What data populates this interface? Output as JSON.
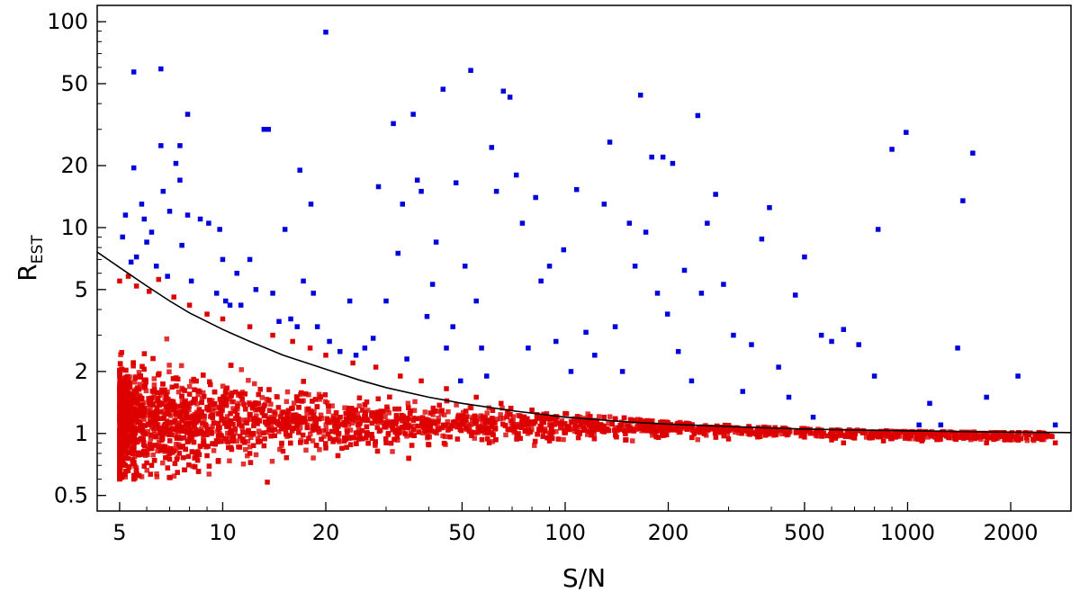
{
  "chart_data": {
    "type": "scatter",
    "xlabel": "S/N",
    "ylabel": "R",
    "ylabel_subscript": "EST",
    "xscale": "log",
    "yscale": "log",
    "xlim": [
      4.3,
      3000
    ],
    "ylim": [
      0.42,
      120
    ],
    "x_ticks": [
      5,
      10,
      20,
      50,
      100,
      200,
      500,
      1000,
      2000
    ],
    "x_tick_labels": [
      "5",
      "10",
      "20",
      "50",
      "100",
      "200",
      "500",
      "1000",
      "2000"
    ],
    "y_ticks": [
      0.5,
      1,
      2,
      5,
      10,
      20,
      50,
      100
    ],
    "y_tick_labels": [
      "0.5",
      "1",
      "2",
      "5",
      "10",
      "20",
      "50",
      "100"
    ],
    "grid": false,
    "colors": {
      "below": "#dd0000",
      "above": "#0000dd",
      "curve": "#000000"
    },
    "series": [
      {
        "kind": "points",
        "color": "#0000dd",
        "points": [
          [
            5.1,
            9.0
          ],
          [
            5.2,
            11.5
          ],
          [
            5.4,
            6.8
          ],
          [
            5.5,
            57
          ],
          [
            5.5,
            19.5
          ],
          [
            5.6,
            7.2
          ],
          [
            5.8,
            13
          ],
          [
            5.9,
            11
          ],
          [
            6.0,
            8.5
          ],
          [
            6.2,
            9.5
          ],
          [
            6.4,
            6.5
          ],
          [
            6.6,
            59
          ],
          [
            6.6,
            25
          ],
          [
            6.7,
            15
          ],
          [
            6.9,
            5.8
          ],
          [
            7.0,
            12
          ],
          [
            7.3,
            20.5
          ],
          [
            7.5,
            25
          ],
          [
            7.5,
            17
          ],
          [
            7.6,
            8.2
          ],
          [
            7.9,
            35.5
          ],
          [
            7.9,
            11.5
          ],
          [
            8.1,
            5.5
          ],
          [
            8.6,
            11
          ],
          [
            9.1,
            10.5
          ],
          [
            9.6,
            4.8
          ],
          [
            9.8,
            9.8
          ],
          [
            10.0,
            7.0
          ],
          [
            10.2,
            4.4
          ],
          [
            10.5,
            4.2
          ],
          [
            11.0,
            6.0
          ],
          [
            11.3,
            4.2
          ],
          [
            12.0,
            7.0
          ],
          [
            12.5,
            5.0
          ],
          [
            13.2,
            30
          ],
          [
            13.6,
            30
          ],
          [
            14.0,
            4.8
          ],
          [
            14.6,
            3.5
          ],
          [
            15.2,
            9.8
          ],
          [
            15.8,
            3.6
          ],
          [
            16.5,
            3.3
          ],
          [
            16.8,
            19
          ],
          [
            17.2,
            5.5
          ],
          [
            18.1,
            13
          ],
          [
            18.4,
            4.8
          ],
          [
            18.9,
            3.3
          ],
          [
            20.0,
            89
          ],
          [
            20.5,
            2.8
          ],
          [
            22.0,
            2.5
          ],
          [
            23.5,
            4.4
          ],
          [
            24.5,
            2.4
          ],
          [
            26.0,
            2.6
          ],
          [
            27.5,
            2.9
          ],
          [
            28.5,
            15.8
          ],
          [
            30.0,
            4.4
          ],
          [
            31.5,
            32
          ],
          [
            32.5,
            7.5
          ],
          [
            33.5,
            13
          ],
          [
            34.5,
            2.3
          ],
          [
            36.0,
            35.5
          ],
          [
            37.0,
            17
          ],
          [
            38.0,
            15
          ],
          [
            39.5,
            3.7
          ],
          [
            41.0,
            5.3
          ],
          [
            42.0,
            8.5
          ],
          [
            44.0,
            47
          ],
          [
            45.0,
            2.6
          ],
          [
            47.0,
            3.3
          ],
          [
            48.0,
            16.5
          ],
          [
            49.5,
            1.8
          ],
          [
            51.0,
            6.5
          ],
          [
            53.0,
            58
          ],
          [
            55.0,
            4.4
          ],
          [
            57.0,
            2.6
          ],
          [
            59.0,
            1.9
          ],
          [
            61.0,
            24.5
          ],
          [
            63.0,
            15
          ],
          [
            66.0,
            46
          ],
          [
            69.0,
            43
          ],
          [
            72.0,
            18
          ],
          [
            75.0,
            10.5
          ],
          [
            78.0,
            2.6
          ],
          [
            82.0,
            14
          ],
          [
            85.0,
            5.5
          ],
          [
            90.0,
            6.5
          ],
          [
            94.0,
            2.8
          ],
          [
            99.0,
            7.8
          ],
          [
            104.0,
            2.0
          ],
          [
            108.0,
            15.3
          ],
          [
            115.0,
            3.1
          ],
          [
            122.0,
            2.4
          ],
          [
            130.0,
            13
          ],
          [
            135.0,
            26
          ],
          [
            140.0,
            3.3
          ],
          [
            147.0,
            2.0
          ],
          [
            154.0,
            10.5
          ],
          [
            160.0,
            6.5
          ],
          [
            166.0,
            44
          ],
          [
            172.0,
            9.5
          ],
          [
            179.0,
            22
          ],
          [
            186.0,
            4.8
          ],
          [
            193.0,
            22
          ],
          [
            199.0,
            3.8
          ],
          [
            206.0,
            20.5
          ],
          [
            214.0,
            2.5
          ],
          [
            223.0,
            6.2
          ],
          [
            234.0,
            1.8
          ],
          [
            244.0,
            35
          ],
          [
            250.0,
            4.8
          ],
          [
            260.0,
            10.5
          ],
          [
            275.0,
            14.5
          ],
          [
            290.0,
            5.3
          ],
          [
            310.0,
            3.0
          ],
          [
            330.0,
            1.6
          ],
          [
            350.0,
            2.7
          ],
          [
            375.0,
            8.8
          ],
          [
            395.0,
            12.5
          ],
          [
            420.0,
            2.1
          ],
          [
            450.0,
            1.5
          ],
          [
            470.0,
            4.7
          ],
          [
            500.0,
            7.2
          ],
          [
            530.0,
            1.2
          ],
          [
            560.0,
            3.0
          ],
          [
            600.0,
            2.8
          ],
          [
            650.0,
            3.2
          ],
          [
            720.0,
            2.7
          ],
          [
            800.0,
            1.9
          ],
          [
            820.0,
            9.8
          ],
          [
            900.0,
            24
          ],
          [
            990.0,
            29
          ],
          [
            1080.0,
            1.1
          ],
          [
            1160.0,
            1.4
          ],
          [
            1250.0,
            1.1
          ],
          [
            1400.0,
            2.6
          ],
          [
            1450.0,
            13.5
          ],
          [
            1550.0,
            23
          ],
          [
            1700.0,
            1.5
          ],
          [
            2100.0,
            1.9
          ],
          [
            2700.0,
            1.1
          ]
        ]
      },
      {
        "kind": "density",
        "color": "#dd0000",
        "points": [
          [
            5.0,
            0.6
          ],
          [
            5.5,
            0.6
          ],
          [
            6.2,
            0.7
          ],
          [
            13.5,
            0.58
          ],
          [
            5.0,
            5.5
          ],
          [
            5.3,
            5.8
          ],
          [
            5.6,
            5.2
          ],
          [
            6.1,
            4.9
          ],
          [
            6.5,
            5.6
          ],
          [
            7.2,
            4.6
          ],
          [
            8.0,
            4.2
          ],
          [
            9.0,
            3.8
          ],
          [
            10.0,
            3.6
          ],
          [
            12.0,
            3.3
          ],
          [
            14.0,
            3.0
          ],
          [
            16.0,
            2.8
          ],
          [
            18.0,
            2.6
          ],
          [
            20.0,
            2.4
          ],
          [
            24.0,
            2.2
          ],
          [
            28.0,
            2.1
          ],
          [
            33.0,
            1.9
          ],
          [
            38.0,
            1.8
          ],
          [
            45.0,
            1.65
          ],
          [
            55.0,
            1.5
          ],
          [
            65.0,
            1.4
          ],
          [
            80.0,
            1.3
          ],
          [
            100.0,
            1.25
          ],
          [
            130.0,
            1.2
          ],
          [
            170.0,
            1.13
          ],
          [
            220.0,
            1.1
          ],
          [
            300.0,
            1.05
          ],
          [
            400.0,
            1.04
          ],
          [
            500.0,
            0.96
          ],
          [
            600.0,
            0.93
          ],
          [
            700.0,
            0.95
          ],
          [
            800.0,
            0.98
          ],
          [
            900.0,
            0.97
          ],
          [
            1000.0,
            0.95
          ],
          [
            1300.0,
            0.97
          ],
          [
            1600.0,
            0.96
          ],
          [
            2000.0,
            0.93
          ],
          [
            2400.0,
            0.95
          ],
          [
            2700.0,
            0.9
          ],
          [
            1700.0,
            0.9
          ],
          [
            1100.0,
            0.92
          ],
          [
            850.0,
            0.92
          ],
          [
            650.0,
            0.9
          ],
          [
            300.0,
            0.94
          ],
          [
            150.0,
            0.93
          ],
          [
            90.0,
            0.92
          ],
          [
            60.0,
            0.9
          ],
          [
            40.0,
            0.88
          ],
          [
            30.0,
            0.9
          ],
          [
            20.0,
            0.85
          ],
          [
            15.0,
            0.82
          ],
          [
            12.0,
            0.8
          ],
          [
            9.0,
            0.78
          ],
          [
            7.0,
            0.75
          ],
          [
            6.0,
            0.72
          ],
          [
            5.2,
            0.7
          ]
        ]
      },
      {
        "kind": "curve",
        "color": "#000000",
        "points": [
          [
            4.3,
            7.6
          ],
          [
            5.0,
            6.4
          ],
          [
            6.0,
            5.2
          ],
          [
            7.0,
            4.4
          ],
          [
            8.0,
            3.85
          ],
          [
            10.0,
            3.2
          ],
          [
            12.0,
            2.8
          ],
          [
            15.0,
            2.4
          ],
          [
            20.0,
            2.05
          ],
          [
            25.0,
            1.82
          ],
          [
            30.0,
            1.67
          ],
          [
            40.0,
            1.5
          ],
          [
            50.0,
            1.4
          ],
          [
            70.0,
            1.29
          ],
          [
            100.0,
            1.2
          ],
          [
            150.0,
            1.14
          ],
          [
            200.0,
            1.11
          ],
          [
            300.0,
            1.08
          ],
          [
            500.0,
            1.05
          ],
          [
            700.0,
            1.04
          ],
          [
            1000.0,
            1.03
          ],
          [
            1500.0,
            1.02
          ],
          [
            2000.0,
            1.015
          ],
          [
            3000.0,
            1.01
          ]
        ]
      }
    ]
  }
}
